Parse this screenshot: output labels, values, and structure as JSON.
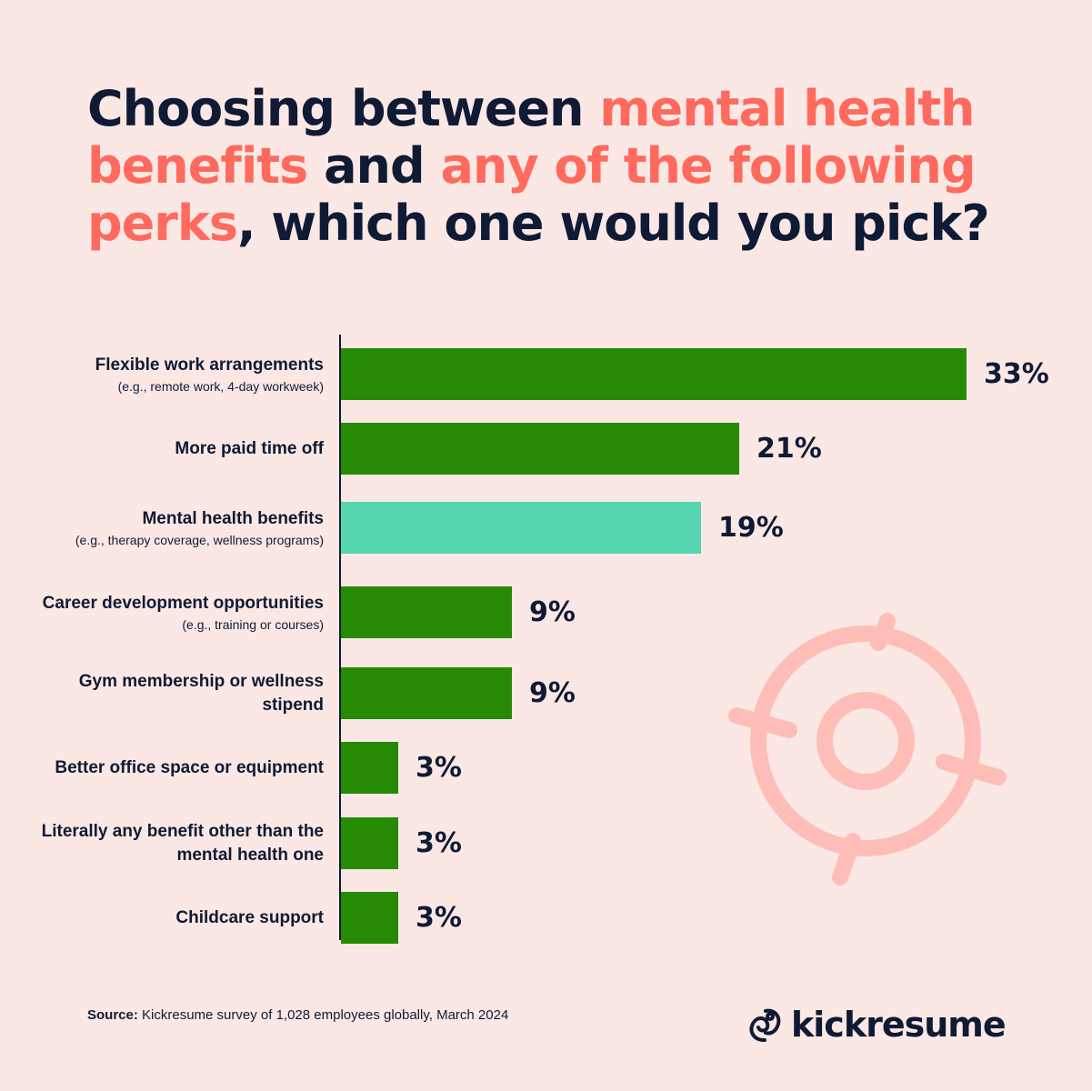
{
  "title": {
    "parts": [
      {
        "text": "Choosing between ",
        "highlight": false
      },
      {
        "text": "mental health benefits",
        "highlight": true
      },
      {
        "text": " and ",
        "highlight": false
      },
      {
        "text": "any of the following perks",
        "highlight": true
      },
      {
        "text": ", which one would you pick?",
        "highlight": false
      }
    ]
  },
  "colors": {
    "background": "#fbe8e4",
    "text": "#0f1a35",
    "highlight": "#ff6a5e",
    "bar": "#268a05",
    "bar_highlight": "#55d6b0",
    "icon": "#ffbdb8"
  },
  "chart_data": {
    "type": "bar",
    "orientation": "horizontal",
    "categories": [
      {
        "label": "Flexible work arrangements",
        "sublabel": "(e.g., remote work, 4-day workweek)",
        "value": 33,
        "value_label": "33%",
        "highlight": false
      },
      {
        "label": "More paid time off",
        "sublabel": "",
        "value": 21,
        "value_label": "21%",
        "highlight": false
      },
      {
        "label": "Mental health benefits",
        "sublabel": "(e.g., therapy coverage, wellness programs)",
        "value": 19,
        "value_label": "19%",
        "highlight": true
      },
      {
        "label": "Career development opportunities",
        "sublabel": "(e.g., training or courses)",
        "value": 9,
        "value_label": "9%",
        "highlight": false
      },
      {
        "label": "Gym membership or wellness stipend",
        "sublabel": "",
        "value": 9,
        "value_label": "9%",
        "highlight": false
      },
      {
        "label": "Better office space or equipment",
        "sublabel": "",
        "value": 3,
        "value_label": "3%",
        "highlight": false
      },
      {
        "label": "Literally any benefit other than the mental health one",
        "sublabel": "",
        "value": 3,
        "value_label": "3%",
        "highlight": false
      },
      {
        "label": "Childcare support",
        "sublabel": "",
        "value": 3,
        "value_label": "3%",
        "highlight": false
      }
    ],
    "unit": "%",
    "xlim": [
      0,
      33
    ]
  },
  "footer": {
    "source_label": "Source:",
    "source_text": " Kickresume survey of 1,028 employees globally, March 2024"
  },
  "logo": {
    "text": "kickresume",
    "icon": "kickresume-logo-icon"
  },
  "decoration": {
    "icon": "target-crosshair-icon"
  }
}
